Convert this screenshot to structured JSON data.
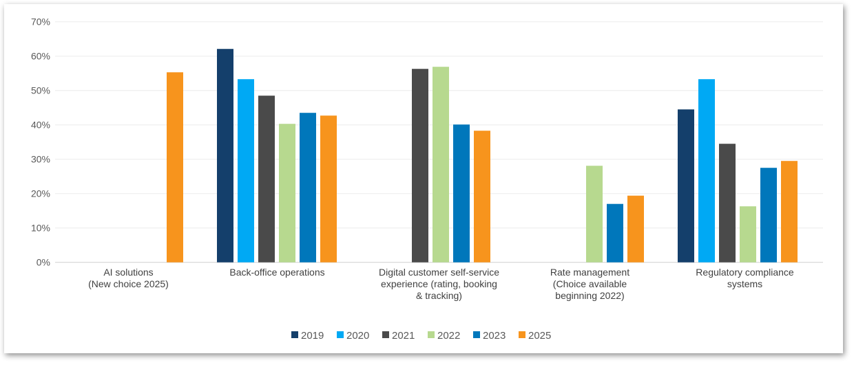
{
  "chart_data": {
    "type": "bar",
    "title": "",
    "xlabel": "",
    "ylabel": "",
    "ylim": [
      0,
      70
    ],
    "y_tick_step": 10,
    "y_tick_format": "percent",
    "y_ticks": [
      "0%",
      "10%",
      "20%",
      "30%",
      "40%",
      "50%",
      "60%",
      "70%"
    ],
    "grid": true,
    "legend_position": "bottom",
    "categories": [
      [
        "AI solutions",
        "(New choice 2025)"
      ],
      [
        "Back-office operations"
      ],
      [
        "Digital customer self-service",
        "experience (rating, booking",
        "& tracking)"
      ],
      [
        "Rate management",
        "(Choice available",
        "beginning 2022)"
      ],
      [
        "Regulatory compliance",
        "systems"
      ]
    ],
    "series": [
      {
        "name": "2019",
        "color": "#143f6b",
        "values": [
          null,
          62.1,
          null,
          null,
          44.5
        ]
      },
      {
        "name": "2020",
        "color": "#00a9f4",
        "values": [
          null,
          53.3,
          null,
          null,
          53.3
        ]
      },
      {
        "name": "2021",
        "color": "#4a4a4a",
        "values": [
          null,
          48.5,
          56.3,
          null,
          34.5
        ]
      },
      {
        "name": "2022",
        "color": "#b7d98f",
        "values": [
          null,
          40.3,
          56.9,
          28.1,
          16.3
        ]
      },
      {
        "name": "2023",
        "color": "#0077bb",
        "values": [
          null,
          43.5,
          40.1,
          17.0,
          27.5
        ]
      },
      {
        "name": "2025",
        "color": "#f7941d",
        "values": [
          55.3,
          42.7,
          38.3,
          19.4,
          29.5
        ]
      }
    ]
  }
}
